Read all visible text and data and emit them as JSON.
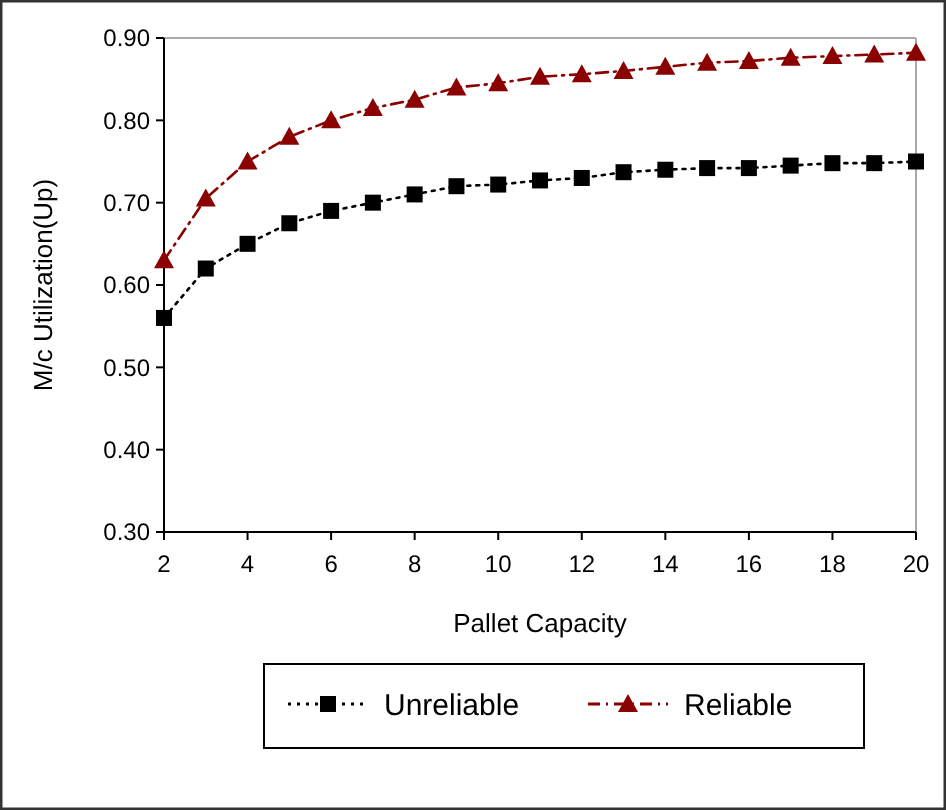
{
  "chart_data": {
    "type": "line",
    "xlabel": "Pallet Capacity",
    "ylabel": "M/c Utilization(Up)",
    "x": [
      2,
      3,
      4,
      5,
      6,
      7,
      8,
      9,
      10,
      11,
      12,
      13,
      14,
      15,
      16,
      17,
      18,
      19,
      20
    ],
    "xlim": [
      2,
      20
    ],
    "xticks": [
      2,
      4,
      6,
      8,
      10,
      12,
      14,
      16,
      18,
      20
    ],
    "ylim": [
      0.3,
      0.9
    ],
    "yticks": [
      {
        "value": 0.3,
        "label": "0.30"
      },
      {
        "value": 0.4,
        "label": "0.40"
      },
      {
        "value": 0.5,
        "label": "0.50"
      },
      {
        "value": 0.6,
        "label": "0.60"
      },
      {
        "value": 0.7,
        "label": "0.70"
      },
      {
        "value": 0.8,
        "label": "0.80"
      },
      {
        "value": 0.9,
        "label": "0.90"
      }
    ],
    "grid": false,
    "legend": "bottom",
    "series": [
      {
        "name": "Unreliable",
        "color": "#000000",
        "marker": "square",
        "line_style": "dotted",
        "values": [
          0.56,
          0.62,
          0.65,
          0.675,
          0.69,
          0.7,
          0.71,
          0.72,
          0.722,
          0.727,
          0.73,
          0.737,
          0.74,
          0.742,
          0.742,
          0.745,
          0.748,
          0.748,
          0.75
        ]
      },
      {
        "name": "Reliable",
        "color": "#8b0000",
        "marker": "triangle",
        "line_style": "dashed",
        "values": [
          0.63,
          0.705,
          0.75,
          0.78,
          0.8,
          0.815,
          0.825,
          0.84,
          0.845,
          0.853,
          0.856,
          0.86,
          0.865,
          0.87,
          0.872,
          0.876,
          0.878,
          0.88,
          0.882
        ]
      }
    ]
  }
}
